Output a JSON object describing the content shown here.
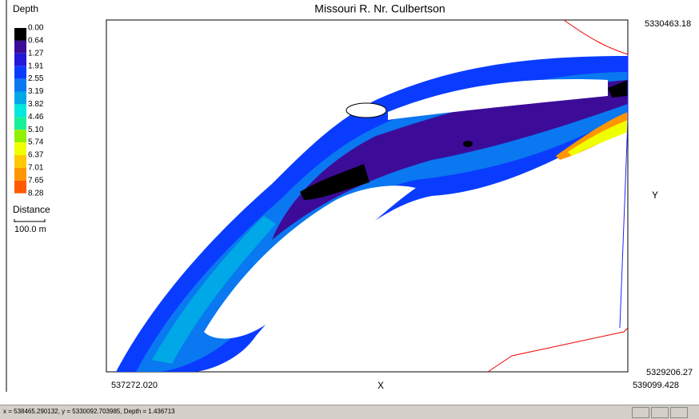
{
  "title": "Missouri R. Nr. Culbertson",
  "legend": {
    "title": "Depth",
    "labels": [
      "0.00",
      "0.64",
      "1.27",
      "1.91",
      "2.55",
      "3.19",
      "3.82",
      "4.46",
      "5.10",
      "5.74",
      "6.37",
      "7.01",
      "7.65",
      "8.28"
    ],
    "colors": [
      "#000000",
      "#3c0c98",
      "#2418d8",
      "#0a3cff",
      "#0a78f0",
      "#00a8e8",
      "#00e8e0",
      "#18f098",
      "#90f000",
      "#f0ff00",
      "#ffc800",
      "#ff9600",
      "#ff5a00",
      "#ff0000"
    ]
  },
  "scale": {
    "title": "Distance",
    "label": "100.0 m"
  },
  "axes": {
    "y_top": "5330463.18",
    "y_bottom": "5329206.27",
    "y_name": "Y",
    "x_left": "537272.020",
    "x_right": "539099.428",
    "x_name": "X"
  },
  "status": "x = 538465.290132, y = 5330092.703985, Depth = 1.436713"
}
